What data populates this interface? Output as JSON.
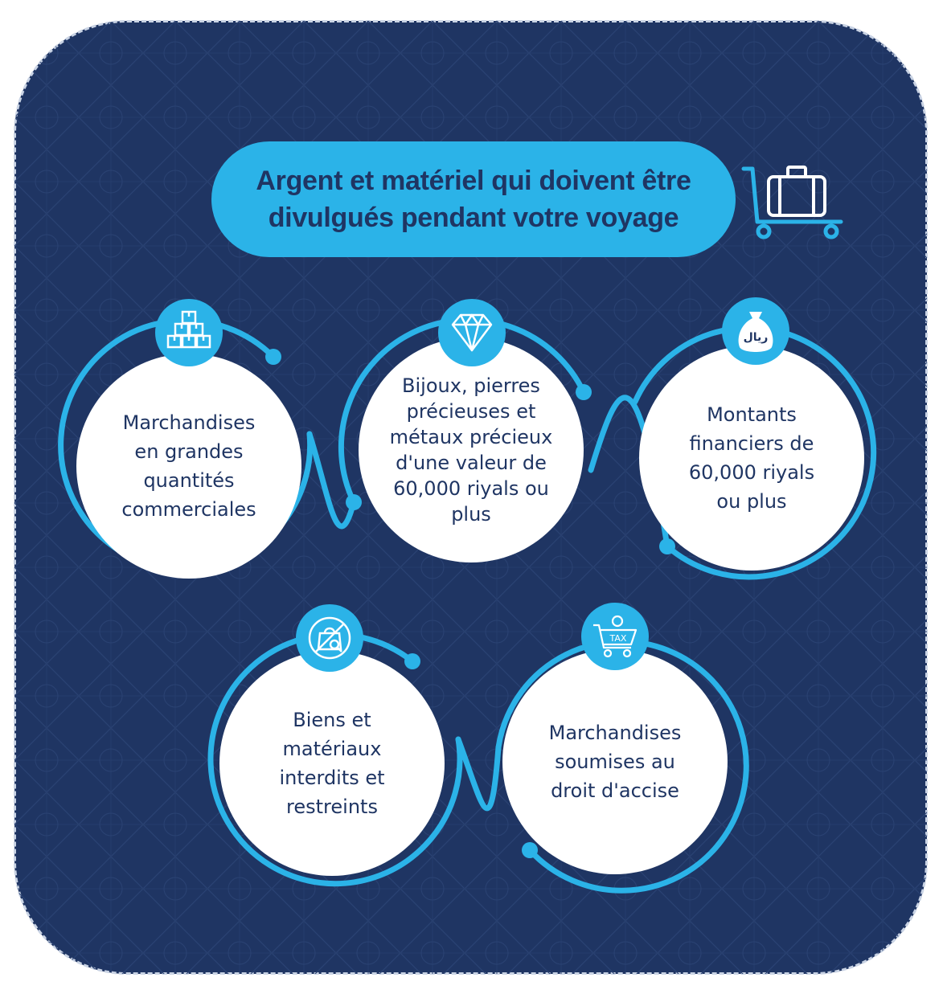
{
  "title": {
    "line1": "Argent et matériel qui doivent être",
    "line2": "divulgués pendant votre voyage"
  },
  "header_icon": "luggage-cart-icon",
  "items": [
    {
      "lines": [
        "Marchandises",
        "en grandes",
        "quantités",
        "commerciales"
      ],
      "icon": "stacked-boxes-icon"
    },
    {
      "lines": [
        "Bijoux, pierres",
        "précieuses et",
        "métaux précieux",
        "d'une valeur de",
        "60,000  riyals ou",
        "plus"
      ],
      "icon": "diamond-icon"
    },
    {
      "lines": [
        "Montants",
        "financiers de",
        "60,000  riyals",
        "ou plus"
      ],
      "icon": "money-bag-icon",
      "icon_text": "ريال"
    },
    {
      "lines": [
        "Biens et",
        "matériaux",
        "interdits et",
        "restreints"
      ],
      "icon": "prohibited-bag-icon"
    },
    {
      "lines": [
        "Marchandises",
        "soumises au",
        "droit d'accise"
      ],
      "icon": "tax-cart-icon",
      "icon_text": "TAX"
    }
  ],
  "colors": {
    "background": "#1f3563",
    "accent": "#2bb3e8",
    "circle": "#ffffff",
    "text": "#1f3563"
  }
}
